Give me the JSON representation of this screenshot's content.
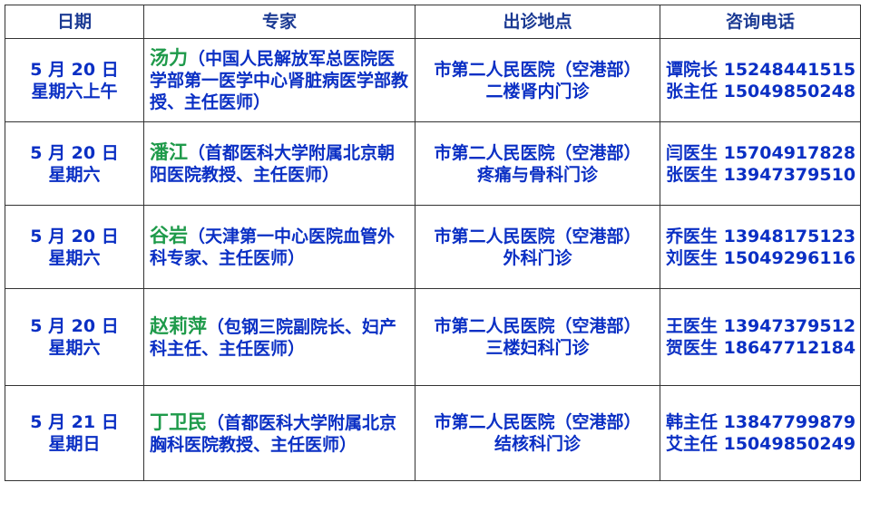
{
  "table": {
    "header": [
      "日期",
      "专家",
      "出诊地点",
      "咨询电话"
    ],
    "rows": [
      {
        "date": [
          "5 月 20 日",
          "星期六上午"
        ],
        "expert": {
          "name": "汤力",
          "detail": "（中国人民解放军总医院医学部第一医学中心肾脏病医学部教授、主任医师）"
        },
        "location": [
          "市第二人民医院（空港部）",
          "二楼肾内门诊"
        ],
        "phones": [
          "谭院长 15248441515",
          "张主任 15049850248"
        ]
      },
      {
        "date": [
          "5 月 20 日",
          "星期六"
        ],
        "expert": {
          "name": "潘江",
          "detail": "（首都医科大学附属北京朝阳医院教授、主任医师）"
        },
        "location": [
          "市第二人民医院（空港部）",
          "疼痛与骨科门诊"
        ],
        "phones": [
          "闫医生 15704917828",
          "张医生 13947379510"
        ]
      },
      {
        "date": [
          "5 月 20 日",
          "星期六"
        ],
        "expert": {
          "name": "谷岩",
          "detail": "（天津第一中心医院血管外科专家、主任医师）"
        },
        "location": [
          "市第二人民医院（空港部）",
          "外科门诊"
        ],
        "phones": [
          "乔医生  13948175123",
          "刘医生 15049296116"
        ]
      },
      {
        "date": [
          "5 月 20 日",
          "星期六"
        ],
        "expert": {
          "name": "赵莉萍",
          "detail": "（包钢三院副院长、妇产科主任、主任医师）"
        },
        "location": [
          "市第二人民医院（空港部）",
          "三楼妇科门诊"
        ],
        "phones": [
          "王医生 13947379512",
          "贺医生 18647712184"
        ]
      },
      {
        "date": [
          "5 月 21 日",
          "星期日"
        ],
        "expert": {
          "name": "丁卫民",
          "detail": "（首都医科大学附属北京胸科医院教授、主任医师）"
        },
        "location": [
          "市第二人民医院（空港部）",
          "结核科门诊"
        ],
        "phones": [
          "韩主任 13847799879",
          "艾主任 15049850249"
        ]
      }
    ]
  }
}
